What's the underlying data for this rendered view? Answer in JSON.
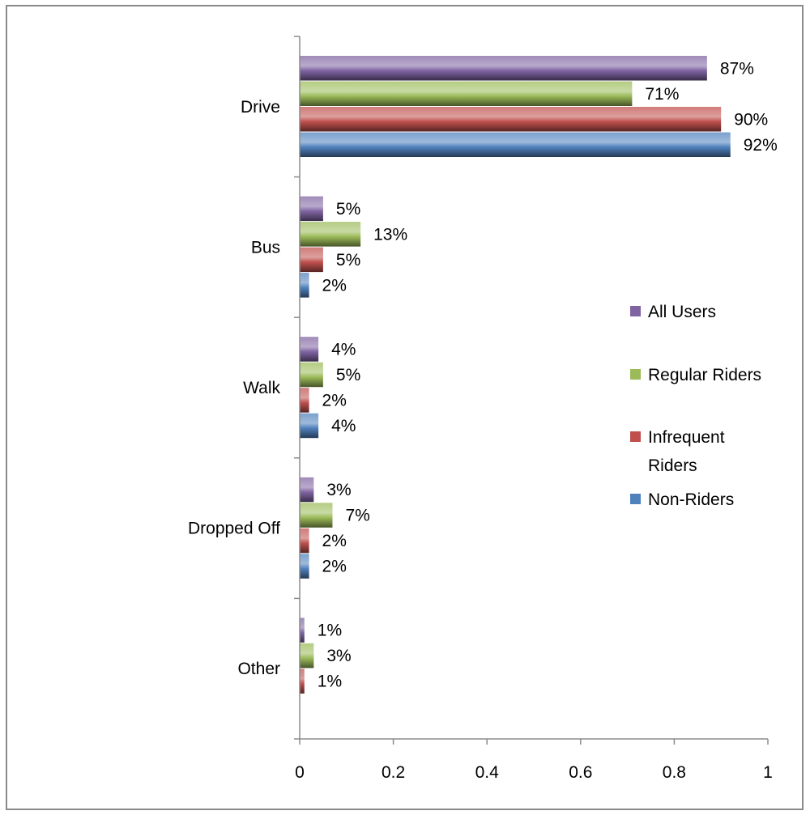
{
  "chart_data": {
    "type": "bar",
    "orientation": "horizontal",
    "categories": [
      "Drive",
      "Bus",
      "Walk",
      "Dropped Off",
      "Other"
    ],
    "series": [
      {
        "name": "All Users",
        "color": "#8064A2",
        "values": [
          0.87,
          0.05,
          0.04,
          0.03,
          0.01
        ],
        "labels": [
          "87%",
          "5%",
          "4%",
          "3%",
          "1%"
        ]
      },
      {
        "name": "Regular Riders",
        "color": "#9BBB59",
        "values": [
          0.71,
          0.13,
          0.05,
          0.07,
          0.03
        ],
        "labels": [
          "71%",
          "13%",
          "5%",
          "7%",
          "3%"
        ]
      },
      {
        "name": "Infrequent Riders",
        "legend_lines": [
          "Infrequent",
          "Riders"
        ],
        "color": "#C0504D",
        "values": [
          0.9,
          0.05,
          0.02,
          0.02,
          0.01
        ],
        "labels": [
          "90%",
          "5%",
          "2%",
          "2%",
          "1%"
        ]
      },
      {
        "name": "Non-Riders",
        "color": "#4F81BD",
        "values": [
          0.92,
          0.02,
          0.04,
          0.02,
          null
        ],
        "labels": [
          "92%",
          "2%",
          "4%",
          "2%",
          ""
        ]
      }
    ],
    "x_ticks": [
      "0",
      "0.2",
      "0.4",
      "0.6",
      "0.8",
      "1"
    ],
    "xlim": [
      0,
      1
    ],
    "grid": false,
    "legend_position": "right",
    "title": "",
    "xlabel": "",
    "ylabel": ""
  }
}
